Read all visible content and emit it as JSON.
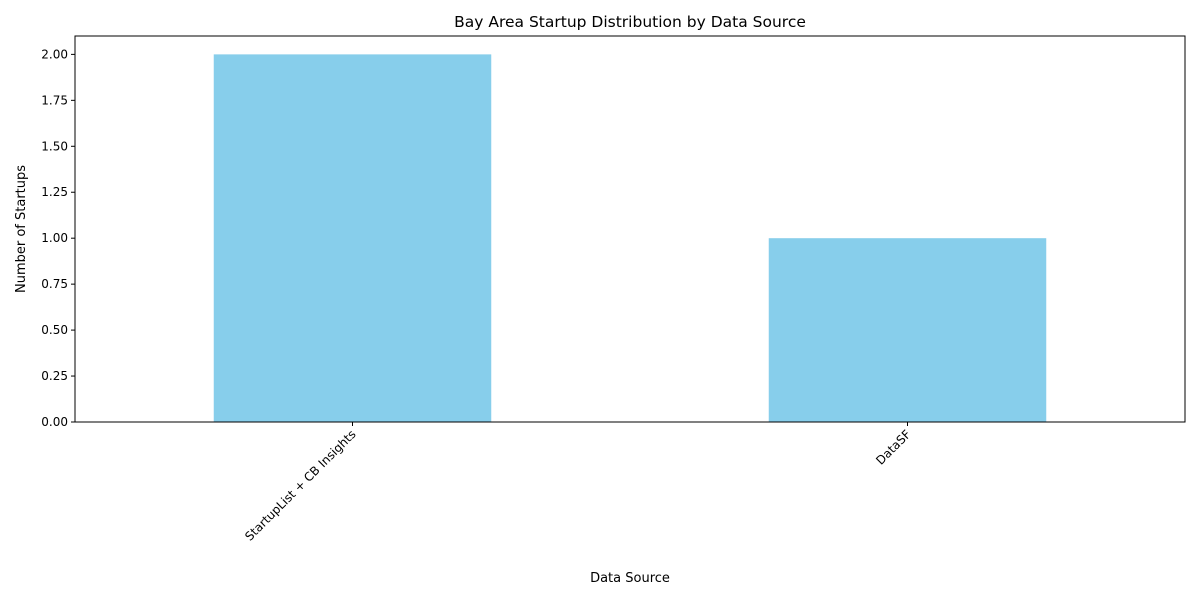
{
  "chart_data": {
    "type": "bar",
    "title": "Bay Area Startup Distribution by Data Source",
    "xlabel": "Data Source",
    "ylabel": "Number of Startups",
    "categories": [
      "StartupList + CB Insights",
      "DataSF"
    ],
    "values": [
      2,
      1
    ],
    "ylim": [
      0,
      2.1
    ],
    "yticks": [
      "0.00",
      "0.25",
      "0.50",
      "0.75",
      "1.00",
      "1.25",
      "1.50",
      "1.75",
      "2.00"
    ],
    "x_tick_rotation_deg": 45,
    "bar_color": "#87ceeb",
    "grid": false,
    "legend": "none"
  }
}
